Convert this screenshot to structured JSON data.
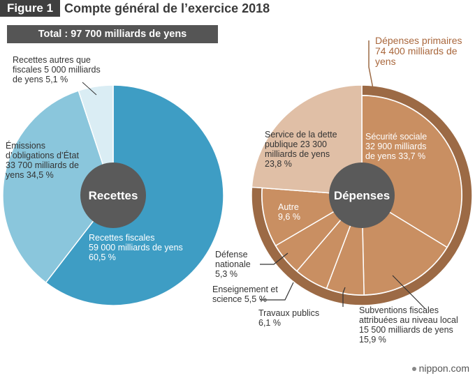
{
  "figure": {
    "badge": "Figure 1",
    "title": "Compte général de l’exercice 2018",
    "total": "Total : 97 700 milliards de yens",
    "source": "nippon.com"
  },
  "colors": {
    "recettes_fiscales": "#3e9dc4",
    "emissions": "#8ac6dc",
    "recettes_autres": "#daedf4",
    "center": "#5a5a5a",
    "primary_ring": "#9c6a45",
    "securite_sociale": "#c98f62",
    "service_dette": "#e0bfa6",
    "divider": "#ffffff",
    "leader": "#333333",
    "accent_text": "#a9673c"
  },
  "chart_data": [
    {
      "type": "pie",
      "title": "Recettes",
      "center_label": "Recettes",
      "unit": "milliards de yens",
      "slices": [
        {
          "name": "Recettes fiscales",
          "value": 59000,
          "percent": 60.5
        },
        {
          "name": "Émissions d’obligations d’État",
          "value": 33700,
          "percent": 34.5
        },
        {
          "name": "Recettes autres que fiscales",
          "value": 5000,
          "percent": 5.1
        }
      ],
      "labels": {
        "fiscales": [
          "Recettes fiscales",
          "59 000 milliards de yens",
          "60,5 %"
        ],
        "emissions": [
          "Émissions",
          "d’obligations d’État",
          "33 700 milliards de",
          "yens  34,5 %"
        ],
        "autres": [
          "Recettes autres que",
          "fiscales 5 000 milliards",
          "de yens  5,1 %"
        ]
      }
    },
    {
      "type": "pie",
      "title": "Dépenses",
      "center_label": "Dépenses",
      "unit": "milliards de yens",
      "slices": [
        {
          "name": "Sécurité sociale",
          "value": 32900,
          "percent": 33.7
        },
        {
          "name": "Subventions fiscales attribuées au niveau local",
          "value": 15500,
          "percent": 15.9
        },
        {
          "name": "Travaux publics",
          "percent": 6.1
        },
        {
          "name": "Enseignement et science",
          "percent": 5.5
        },
        {
          "name": "Défense nationale",
          "percent": 5.3
        },
        {
          "name": "Autre",
          "percent": 9.6
        },
        {
          "name": "Service de la dette publique",
          "value": 23300,
          "percent": 23.8
        }
      ],
      "primary_group": {
        "name": "Dépenses primaires",
        "value": 74400,
        "label": [
          "Dépenses primaires",
          "74 400 milliards de",
          "yens"
        ]
      },
      "labels": {
        "securite": [
          "Sécurité sociale",
          "32 900 milliards",
          "de yens  33,7 %"
        ],
        "dette": [
          "Service de la dette",
          "publique 23 300",
          "milliards de yens",
          "23,8 %"
        ],
        "autre": [
          "Autre",
          "9,6 %"
        ],
        "defense": [
          "Défense",
          "nationale",
          "5,3 %"
        ],
        "enseignement": [
          "Enseignement et",
          "science      5,5 %"
        ],
        "travaux": [
          "Travaux publics",
          "6,1 %"
        ],
        "subventions": [
          "Subventions fiscales",
          "attribuées au niveau local",
          "15 500 milliards de yens",
          "15,9 %"
        ]
      }
    }
  ]
}
